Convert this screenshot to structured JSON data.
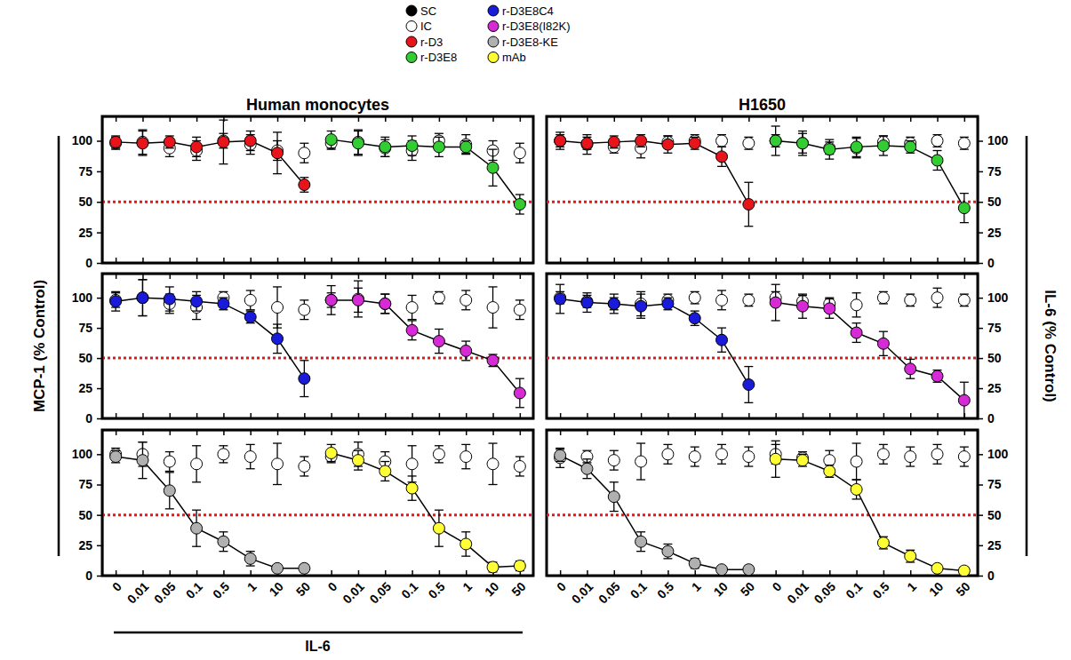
{
  "chart_data": [
    {
      "type": "line",
      "title": "Human monocytes",
      "categories": [
        "0",
        "0.01",
        "0.05",
        "0.1",
        "0.5",
        "1",
        "10",
        "50",
        "0",
        "0.01",
        "0.05",
        "0.1",
        "0.5",
        "1",
        "10",
        "50"
      ],
      "ylim": [
        0,
        120
      ],
      "yticks": [
        0,
        25,
        50,
        75,
        100
      ],
      "tick_labels": "y",
      "reference_line": {
        "value": 50,
        "color": "#e31a1c",
        "line_style": "dotted"
      },
      "series": [
        {
          "name": "SC",
          "color": "#000000",
          "marker": "circle",
          "line_style": "solid",
          "values": [
            null,
            null,
            null,
            null,
            null,
            null,
            null,
            null,
            null,
            null,
            null,
            null,
            null,
            null,
            null,
            null
          ]
        },
        {
          "name": "IC",
          "color": "#ffffff",
          "marker": "circle",
          "line_style": "none",
          "values": [
            98,
            99,
            94,
            92,
            100,
            97,
            92,
            90,
            98,
            99,
            94,
            92,
            100,
            97,
            92,
            90
          ],
          "error": [
            5,
            10,
            7,
            8,
            6,
            8,
            8,
            8,
            5,
            10,
            7,
            8,
            6,
            8,
            8,
            8
          ]
        },
        {
          "name": "r-D3",
          "color": "#e8141b",
          "marker": "circle",
          "line_style": "solid",
          "values": [
            99,
            98,
            99,
            95,
            99,
            100,
            90,
            64,
            null,
            null,
            null,
            null,
            null,
            null,
            null,
            null
          ],
          "error": [
            5,
            10,
            5,
            8,
            18,
            8,
            17,
            6,
            null,
            null,
            null,
            null,
            null,
            null,
            null,
            null
          ]
        },
        {
          "name": "r-D3E8",
          "color": "#33cc33",
          "marker": "circle",
          "line_style": "solid",
          "values": [
            null,
            null,
            null,
            null,
            null,
            null,
            null,
            null,
            101,
            98,
            95,
            96,
            95,
            95,
            78,
            48
          ],
          "error": [
            null,
            null,
            null,
            null,
            null,
            null,
            null,
            null,
            7,
            10,
            8,
            8,
            8,
            5,
            15,
            8
          ]
        }
      ]
    },
    {
      "type": "line",
      "title": "H1650",
      "categories": [
        "0",
        "0.01",
        "0.05",
        "0.1",
        "0.5",
        "1",
        "10",
        "50",
        "0",
        "0.01",
        "0.05",
        "0.1",
        "0.5",
        "1",
        "10",
        "50"
      ],
      "y2lim": [
        0,
        120
      ],
      "y2ticks": [
        0,
        25,
        50,
        75,
        100
      ],
      "tick_labels": "y",
      "reference_line": {
        "value": 50,
        "color": "#e31a1c",
        "line_style": "dotted"
      },
      "series": [
        {
          "name": "IC",
          "color": "#ffffff",
          "marker": "circle",
          "line_style": "none",
          "axis": "y2",
          "values": [
            100,
            97,
            95,
            94,
            99,
            100,
            100,
            98,
            100,
            98,
            94,
            94,
            99,
            98,
            100,
            98
          ],
          "error": [
            5,
            8,
            5,
            8,
            5,
            5,
            5,
            5,
            5,
            8,
            5,
            8,
            5,
            5,
            5,
            5
          ]
        },
        {
          "name": "r-D3",
          "color": "#e8141b",
          "marker": "circle",
          "line_style": "solid",
          "axis": "y2",
          "values": [
            100,
            98,
            99,
            100,
            97,
            98,
            87,
            48,
            null,
            null,
            null,
            null,
            null,
            null,
            null,
            null
          ],
          "error": [
            7,
            5,
            5,
            5,
            7,
            5,
            8,
            18,
            null,
            null,
            null,
            null,
            null,
            null,
            null,
            null
          ]
        },
        {
          "name": "r-D3E8",
          "color": "#33cc33",
          "marker": "circle",
          "line_style": "solid",
          "axis": "y2",
          "values": [
            null,
            null,
            null,
            null,
            null,
            null,
            null,
            null,
            100,
            98,
            93,
            95,
            96,
            95,
            84,
            45
          ],
          "error": [
            null,
            null,
            null,
            null,
            null,
            null,
            null,
            null,
            12,
            10,
            8,
            8,
            8,
            5,
            8,
            12
          ]
        }
      ]
    },
    {
      "type": "line",
      "ylabel": "MCP-1  (% Control)",
      "categories": [
        "0",
        "0.01",
        "0.05",
        "0.1",
        "0.5",
        "1",
        "10",
        "50",
        "0",
        "0.01",
        "0.05",
        "0.1",
        "0.5",
        "1",
        "10",
        "50"
      ],
      "ylim": [
        0,
        120
      ],
      "yticks": [
        0,
        25,
        50,
        75,
        100
      ],
      "tick_labels": "y",
      "reference_line": {
        "value": 50,
        "color": "#e31a1c",
        "line_style": "dotted"
      },
      "series": [
        {
          "name": "IC",
          "color": "#ffffff",
          "marker": "circle",
          "line_style": "none",
          "values": [
            98,
            100,
            95,
            92,
            100,
            98,
            92,
            90,
            98,
            99,
            95,
            92,
            100,
            98,
            92,
            90
          ],
          "error": [
            6,
            15,
            8,
            10,
            5,
            8,
            17,
            8,
            6,
            15,
            8,
            10,
            5,
            8,
            17,
            8
          ]
        },
        {
          "name": "r-D3E8C4",
          "color": "#1a1adb",
          "marker": "circle",
          "line_style": "solid",
          "values": [
            97,
            100,
            99,
            97,
            95,
            84,
            66,
            33,
            null,
            null,
            null,
            null,
            null,
            null,
            null,
            null
          ],
          "error": [
            8,
            15,
            10,
            8,
            5,
            5,
            12,
            15,
            null,
            null,
            null,
            null,
            null,
            null,
            null,
            null
          ]
        },
        {
          "name": "r-D3E8(I82K)",
          "color": "#d62ad6",
          "marker": "circle",
          "line_style": "solid",
          "values": [
            null,
            null,
            null,
            null,
            null,
            null,
            null,
            null,
            98,
            98,
            95,
            73,
            64,
            56,
            48,
            21
          ],
          "error": [
            null,
            null,
            null,
            null,
            null,
            null,
            null,
            null,
            12,
            10,
            8,
            8,
            10,
            8,
            5,
            12
          ]
        }
      ]
    },
    {
      "type": "line",
      "y2label": "IL-6  (% Control)",
      "categories": [
        "0",
        "0.01",
        "0.05",
        "0.1",
        "0.5",
        "1",
        "10",
        "50",
        "0",
        "0.01",
        "0.05",
        "0.1",
        "0.5",
        "1",
        "10",
        "50"
      ],
      "y2lim": [
        0,
        120
      ],
      "y2ticks": [
        0,
        25,
        50,
        75,
        100
      ],
      "tick_labels": "y",
      "reference_line": {
        "value": 50,
        "color": "#e31a1c",
        "line_style": "dotted"
      },
      "series": [
        {
          "name": "IC",
          "color": "#ffffff",
          "marker": "circle",
          "line_style": "none",
          "axis": "y2",
          "values": [
            100,
            97,
            95,
            95,
            98,
            100,
            98,
            98,
            100,
            97,
            95,
            94,
            100,
            98,
            100,
            98
          ],
          "error": [
            5,
            5,
            5,
            10,
            5,
            5,
            8,
            5,
            5,
            5,
            5,
            10,
            5,
            5,
            8,
            5
          ]
        },
        {
          "name": "r-D3E8C4",
          "color": "#1a1adb",
          "marker": "circle",
          "line_style": "solid",
          "axis": "y2",
          "values": [
            99,
            96,
            95,
            93,
            95,
            83,
            65,
            28,
            null,
            null,
            null,
            null,
            null,
            null,
            null,
            null
          ],
          "error": [
            12,
            8,
            8,
            10,
            5,
            6,
            10,
            15,
            null,
            null,
            null,
            null,
            null,
            null,
            null,
            null
          ]
        },
        {
          "name": "r-D3E8(I82K)",
          "color": "#d62ad6",
          "marker": "circle",
          "line_style": "solid",
          "axis": "y2",
          "values": [
            null,
            null,
            null,
            null,
            null,
            null,
            null,
            null,
            96,
            93,
            91,
            71,
            62,
            41,
            35,
            15
          ],
          "error": [
            null,
            null,
            null,
            null,
            null,
            null,
            null,
            null,
            15,
            10,
            8,
            8,
            10,
            8,
            5,
            15
          ]
        }
      ]
    },
    {
      "type": "line",
      "xlabel": "IL-6",
      "categories": [
        "0",
        "0.01",
        "0.05",
        "0.1",
        "0.5",
        "1",
        "10",
        "50",
        "0",
        "0.01",
        "0.05",
        "0.1",
        "0.5",
        "1",
        "10",
        "50"
      ],
      "ylim": [
        0,
        120
      ],
      "yticks": [
        0,
        25,
        50,
        75,
        100
      ],
      "reference_line": {
        "value": 50,
        "color": "#e31a1c",
        "line_style": "dotted"
      },
      "series": [
        {
          "name": "IC",
          "color": "#ffffff",
          "marker": "circle",
          "line_style": "none",
          "values": [
            100,
            100,
            94,
            92,
            100,
            98,
            92,
            90,
            98,
            100,
            94,
            92,
            100,
            98,
            92,
            90
          ],
          "error": [
            5,
            10,
            8,
            15,
            7,
            10,
            17,
            8,
            5,
            10,
            8,
            15,
            7,
            10,
            17,
            8
          ]
        },
        {
          "name": "r-D3E8-KE",
          "color": "#b0b0b0",
          "marker": "circle",
          "line_style": "solid",
          "values": [
            98,
            95,
            70,
            39,
            28,
            14,
            6,
            6,
            null,
            null,
            null,
            null,
            null,
            null,
            null,
            null
          ],
          "error": [
            5,
            15,
            15,
            15,
            8,
            6,
            3,
            3,
            null,
            null,
            null,
            null,
            null,
            null,
            null,
            null
          ]
        },
        {
          "name": "mAb",
          "color": "#ffff33",
          "marker": "circle",
          "line_style": "solid",
          "values": [
            null,
            null,
            null,
            null,
            null,
            null,
            null,
            null,
            101,
            95,
            86,
            72,
            39,
            26,
            7,
            8
          ],
          "error": [
            null,
            null,
            null,
            null,
            null,
            null,
            null,
            null,
            7,
            8,
            8,
            10,
            15,
            10,
            4,
            4
          ]
        }
      ]
    },
    {
      "type": "line",
      "categories": [
        "0",
        "0.01",
        "0.05",
        "0.1",
        "0.5",
        "1",
        "10",
        "50",
        "0",
        "0.01",
        "0.05",
        "0.1",
        "0.5",
        "1",
        "10",
        "50"
      ],
      "y2lim": [
        0,
        120
      ],
      "y2ticks": [
        0,
        25,
        50,
        75,
        100
      ],
      "reference_line": {
        "value": 50,
        "color": "#e31a1c",
        "line_style": "dotted"
      },
      "series": [
        {
          "name": "IC",
          "color": "#ffffff",
          "marker": "circle",
          "line_style": "none",
          "axis": "y2",
          "values": [
            97,
            98,
            95,
            94,
            100,
            98,
            100,
            98,
            100,
            97,
            95,
            94,
            100,
            98,
            100,
            98
          ],
          "error": [
            8,
            5,
            8,
            15,
            8,
            8,
            8,
            8,
            8,
            5,
            8,
            15,
            8,
            8,
            8,
            8
          ]
        },
        {
          "name": "r-D3E8-KE",
          "color": "#b0b0b0",
          "marker": "circle",
          "line_style": "solid",
          "axis": "y2",
          "values": [
            99,
            88,
            65,
            28,
            20,
            10,
            5,
            5,
            null,
            null,
            null,
            null,
            null,
            null,
            null,
            null
          ],
          "error": [
            5,
            8,
            12,
            8,
            6,
            4,
            3,
            3,
            null,
            null,
            null,
            null,
            null,
            null,
            null,
            null
          ]
        },
        {
          "name": "mAb",
          "color": "#ffff33",
          "marker": "circle",
          "line_style": "solid",
          "axis": "y2",
          "values": [
            null,
            null,
            null,
            null,
            null,
            null,
            null,
            null,
            96,
            95,
            86,
            71,
            27,
            16,
            6,
            4
          ],
          "error": [
            null,
            null,
            null,
            null,
            null,
            null,
            null,
            null,
            15,
            5,
            5,
            8,
            5,
            5,
            3,
            3
          ]
        }
      ]
    }
  ]
}
